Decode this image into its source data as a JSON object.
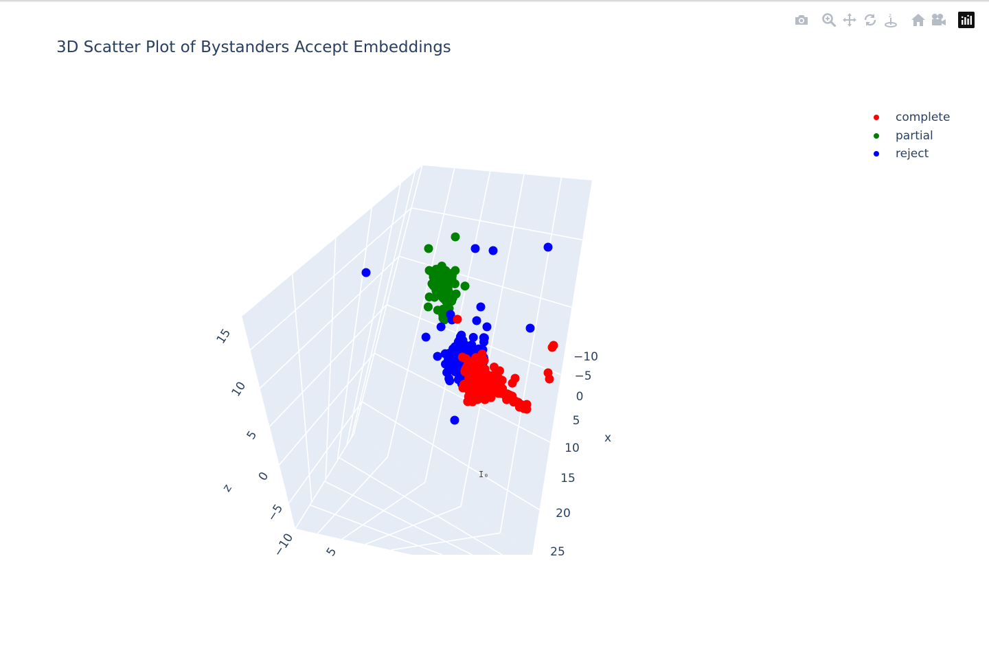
{
  "title": "3D Scatter Plot of Bystanders Accept Embeddings",
  "modebar": {
    "buttons": [
      {
        "name": "camera-icon",
        "label": "Download plot as a png"
      },
      {
        "name": "zoom-icon",
        "label": "Zoom"
      },
      {
        "name": "pan-icon",
        "label": "Pan"
      },
      {
        "name": "orbit-rotation-icon",
        "label": "Orbital rotation"
      },
      {
        "name": "turntable-rotation-icon",
        "label": "Turntable rotation"
      },
      {
        "name": "home-icon",
        "label": "Reset camera to default"
      },
      {
        "name": "video-camera-icon",
        "label": "Reset camera to last save"
      },
      {
        "name": "plotly-logo-icon",
        "label": "Produced with Plotly"
      }
    ]
  },
  "chart_data": {
    "type": "scatter3d",
    "title": "3D Scatter Plot of Bystanders Accept Embeddings",
    "axes": {
      "x": {
        "label": "x",
        "ticks": [
          "−10",
          "−5",
          "0",
          "5",
          "10",
          "15",
          "20",
          "25"
        ]
      },
      "y": {
        "label": "",
        "ticks": [
          "5"
        ]
      },
      "z": {
        "label": "z",
        "ticks": [
          "−10",
          "−5",
          "0",
          "5",
          "10",
          "15"
        ]
      }
    },
    "grid": true,
    "legend": {
      "placement": "top-right"
    },
    "series": [
      {
        "name": "complete",
        "color": "#ff0000"
      },
      {
        "name": "partial",
        "color": "#008000"
      },
      {
        "name": "reject",
        "color": "#0000ff"
      }
    ]
  },
  "cursor_text": "I₀"
}
